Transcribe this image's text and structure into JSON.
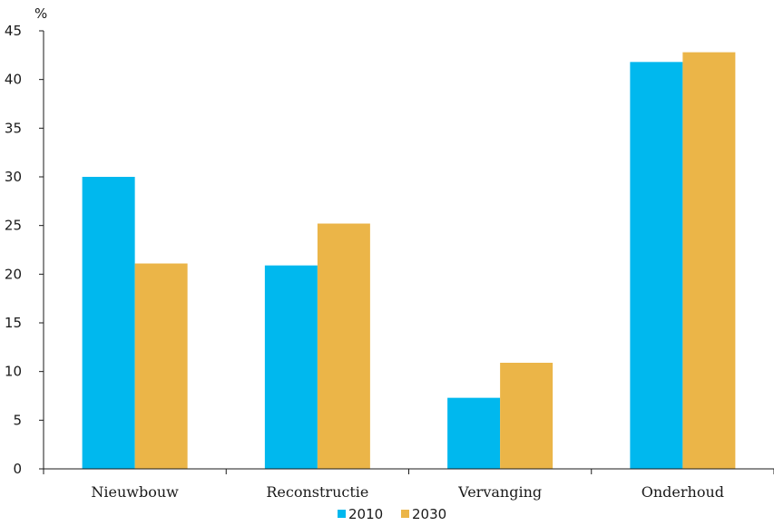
{
  "chart_data": {
    "type": "bar",
    "ylabel": "%",
    "ylim": [
      0,
      45
    ],
    "yticks": [
      0,
      5,
      10,
      15,
      20,
      25,
      30,
      35,
      40,
      45
    ],
    "grid": false,
    "legend_position": "bottom",
    "categories": [
      "Nieuwbouw",
      "Reconstructie",
      "Vervanging",
      "Onderhoud"
    ],
    "series": [
      {
        "name": "2010",
        "color": "#00B8EE",
        "values": [
          30,
          20.9,
          7.3,
          41.8
        ]
      },
      {
        "name": "2030",
        "color": "#EBB548",
        "values": [
          21.1,
          25.2,
          10.9,
          42.8
        ]
      }
    ]
  }
}
